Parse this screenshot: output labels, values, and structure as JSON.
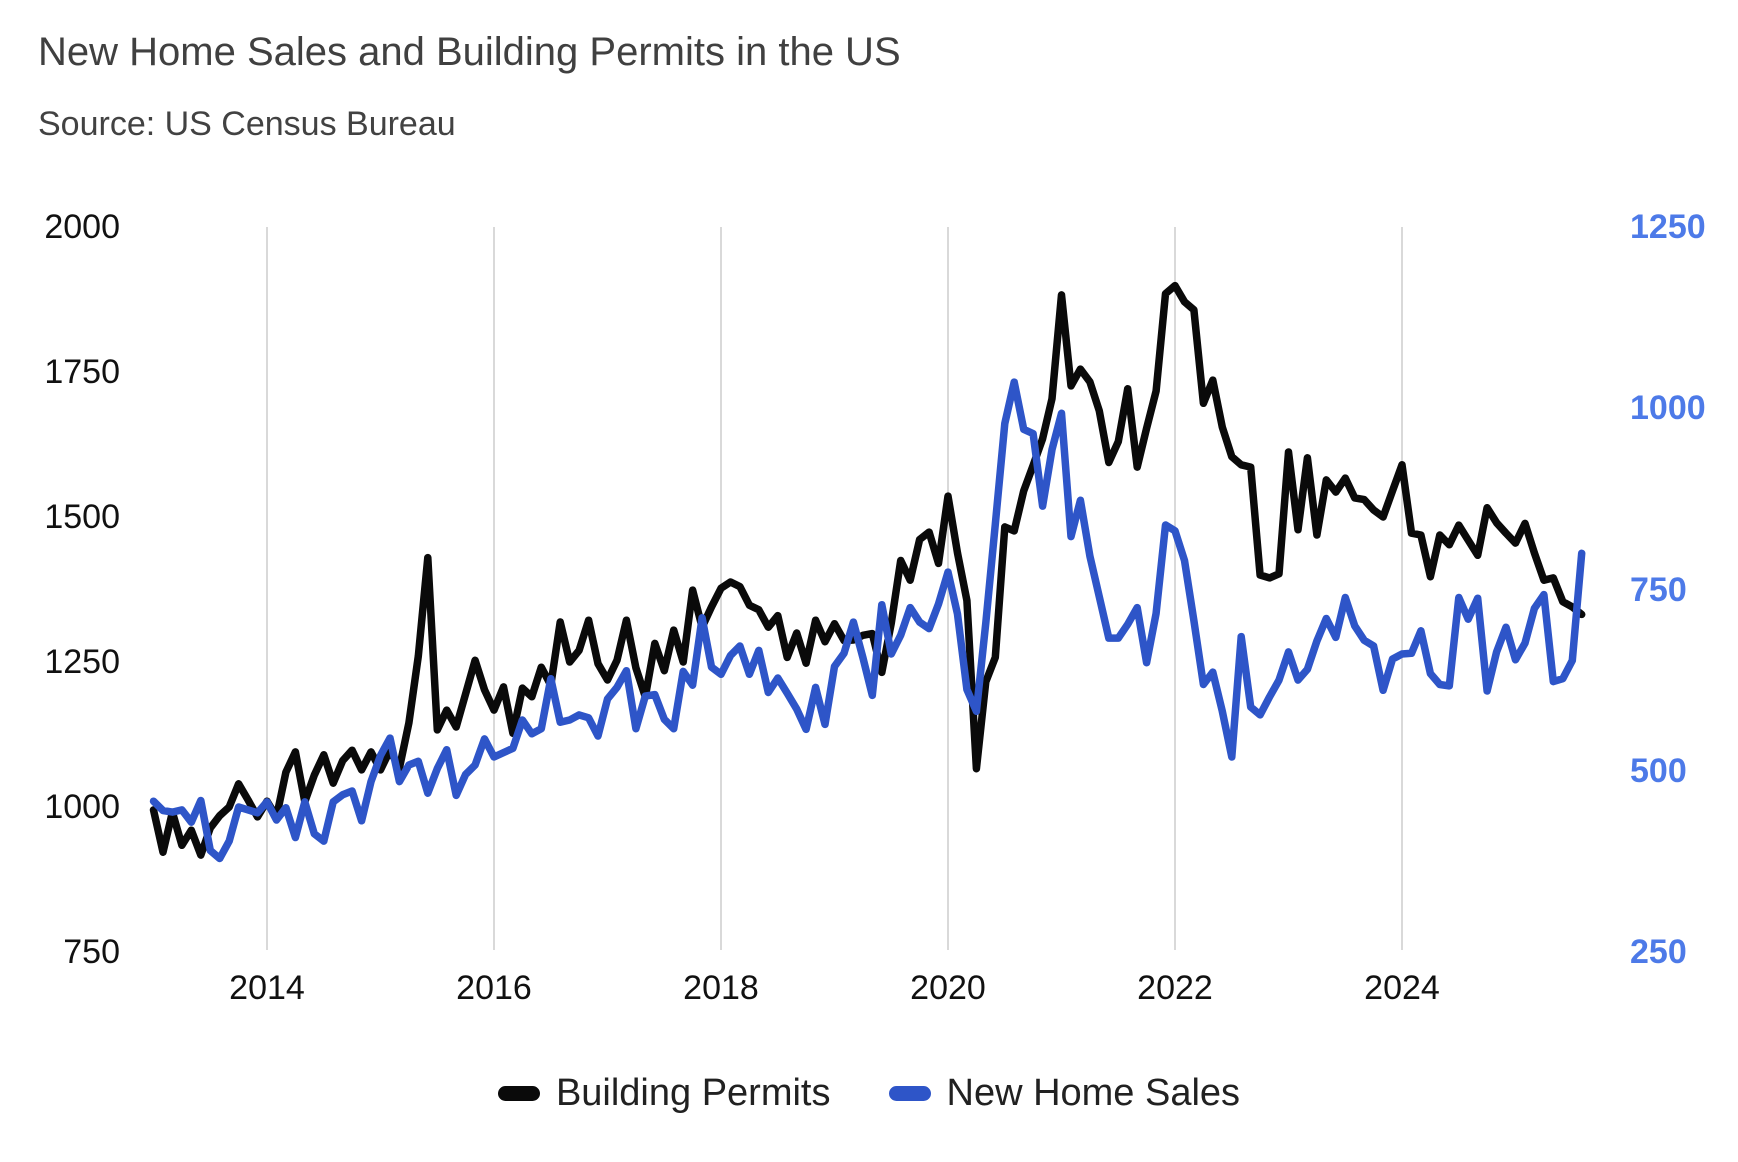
{
  "chart_data": {
    "type": "line",
    "title": "New Home Sales and Building Permits in the US",
    "subtitle": "Source: US Census Bureau",
    "frequency": "monthly",
    "x_start": "2013-01",
    "x_end": "2025-08",
    "x_tick_labels": [
      "2014",
      "2016",
      "2018",
      "2020",
      "2022",
      "2024"
    ],
    "x_tick_years": [
      2014,
      2016,
      2018,
      2020,
      2022,
      2024
    ],
    "grid": "vertical-year-gridlines-only",
    "gridline_color": "#d9d9d9",
    "legend_position": "bottom",
    "left_axis": {
      "series": "Building Permits",
      "ticks": [
        2000,
        1750,
        1500,
        1250,
        1000,
        750
      ],
      "range": [
        750,
        2000
      ],
      "label_color": "#111111"
    },
    "right_axis": {
      "series": "New Home Sales",
      "ticks": [
        1250,
        1000,
        750,
        500,
        250
      ],
      "range": [
        250,
        1250
      ],
      "label_color": "#4d7ae8"
    },
    "series": [
      {
        "name": "Building Permits",
        "axis": "left",
        "color": "#0a0a0a",
        "units": "thousands, SAAR",
        "values": [
          995,
          922,
          991,
          934,
          960,
          917,
          964,
          985,
          1000,
          1040,
          1012,
          983,
          1010,
          983,
          1060,
          1095,
          1009,
          1055,
          1090,
          1041,
          1080,
          1098,
          1064,
          1095,
          1064,
          1098,
          1067,
          1145,
          1260,
          1430,
          1133,
          1167,
          1138,
          1195,
          1253,
          1202,
          1167,
          1207,
          1127,
          1205,
          1190,
          1241,
          1210,
          1319,
          1250,
          1270,
          1322,
          1247,
          1219,
          1253,
          1322,
          1240,
          1190,
          1282,
          1235,
          1305,
          1250,
          1374,
          1310,
          1345,
          1377,
          1388,
          1380,
          1348,
          1340,
          1310,
          1330,
          1258,
          1300,
          1248,
          1322,
          1285,
          1316,
          1287,
          1288,
          1296,
          1299,
          1232,
          1317,
          1425,
          1391,
          1461,
          1474,
          1420,
          1536,
          1438,
          1356,
          1066,
          1216,
          1258,
          1483,
          1476,
          1545,
          1589,
          1635,
          1704,
          1883,
          1726,
          1755,
          1733,
          1683,
          1594,
          1630,
          1721,
          1586,
          1653,
          1717,
          1885,
          1899,
          1871,
          1857,
          1696,
          1736,
          1655,
          1604,
          1590,
          1586,
          1400,
          1395,
          1402,
          1612,
          1478,
          1602,
          1469,
          1564,
          1543,
          1567,
          1533,
          1530,
          1512,
          1500,
          1545,
          1590,
          1472,
          1469,
          1397,
          1469,
          1452,
          1486,
          1460,
          1434,
          1516,
          1490,
          1472,
          1455,
          1489,
          1438,
          1391,
          1395,
          1354,
          1345,
          1332
        ]
      },
      {
        "name": "New Home Sales",
        "axis": "right",
        "color": "#2e55c8",
        "units": "thousands, SAAR",
        "values": [
          458,
          445,
          443,
          446,
          429,
          459,
          390,
          379,
          403,
          450,
          446,
          442,
          457,
          432,
          449,
          408,
          457,
          413,
          403,
          457,
          467,
          472,
          431,
          485,
          521,
          545,
          485,
          508,
          513,
          469,
          503,
          529,
          466,
          495,
          508,
          544,
          519,
          525,
          531,
          570,
          551,
          558,
          627,
          567,
          570,
          577,
          573,
          548,
          599,
          615,
          638,
          558,
          603,
          605,
          571,
          558,
          637,
          618,
          711,
          643,
          633,
          659,
          672,
          633,
          666,
          608,
          628,
          607,
          585,
          557,
          615,
          564,
          644,
          662,
          705,
          656,
          604,
          729,
          661,
          687,
          725,
          705,
          696,
          730,
          774,
          716,
          612,
          582,
          704,
          840,
          979,
          1036,
          971,
          965,
          865,
          943,
          993,
          823,
          873,
          796,
          740,
          683,
          683,
          702,
          725,
          649,
          717,
          839,
          831,
          790,
          707,
          619,
          636,
          582,
          519,
          685,
          588,
          577,
          602,
          625,
          664,
          625,
          640,
          679,
          710,
          684,
          739,
          700,
          680,
          672,
          611,
          654,
          661,
          662,
          693,
          634,
          619,
          617,
          739,
          709,
          738,
          610,
          664,
          698,
          653,
          676,
          724,
          743,
          623,
          627,
          652,
          800
        ]
      }
    ]
  }
}
